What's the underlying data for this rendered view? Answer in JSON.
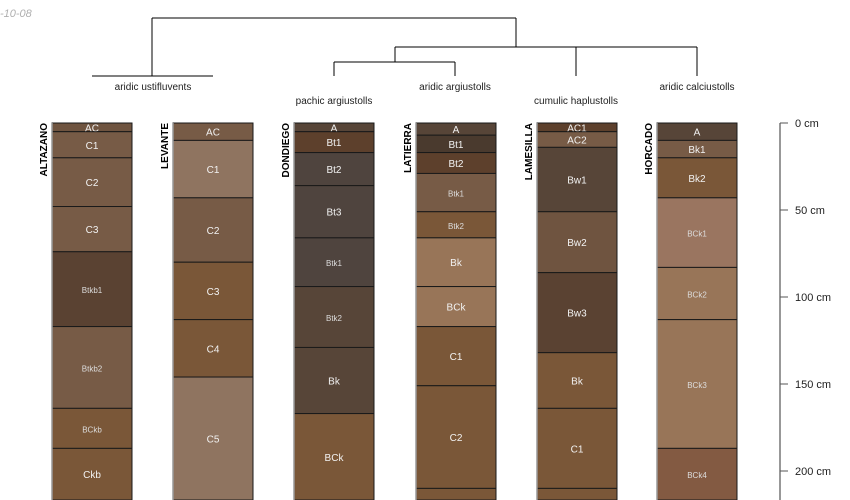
{
  "date_fragment": "-10-08",
  "depth_axis": {
    "unit": "cm",
    "ticks": [
      0,
      50,
      100,
      150,
      200
    ],
    "tick_labels": [
      "0 cm",
      "50 cm",
      "100 cm",
      "150 cm",
      "200 cm"
    ]
  },
  "taxa_labels": [
    "aridic ustifluvents",
    "pachic argiustolls",
    "aridic argiustolls",
    "cumulic haplustolls",
    "aridic calciustolls"
  ],
  "profiles": [
    {
      "name": "ALTAZANO",
      "horizons": [
        {
          "label": "AC",
          "top": 0,
          "bottom": 5,
          "color": "#6f5440"
        },
        {
          "label": "C1",
          "top": 5,
          "bottom": 20,
          "color": "#775b46"
        },
        {
          "label": "C2",
          "top": 20,
          "bottom": 48,
          "color": "#775b46"
        },
        {
          "label": "C3",
          "top": 48,
          "bottom": 74,
          "color": "#775b46"
        },
        {
          "label": "Btkb1",
          "top": 74,
          "bottom": 117,
          "color": "#5a4232"
        },
        {
          "label": "Btkb2",
          "top": 117,
          "bottom": 164,
          "color": "#775b46"
        },
        {
          "label": "BCkb",
          "top": 164,
          "bottom": 187,
          "color": "#7a5738"
        },
        {
          "label": "Ckb",
          "top": 187,
          "bottom": 220,
          "color": "#7a5738"
        }
      ]
    },
    {
      "name": "LEVANTE",
      "horizons": [
        {
          "label": "AC",
          "top": 0,
          "bottom": 10,
          "color": "#775b46"
        },
        {
          "label": "C1",
          "top": 10,
          "bottom": 43,
          "color": "#8f7460"
        },
        {
          "label": "C2",
          "top": 43,
          "bottom": 80,
          "color": "#775b46"
        },
        {
          "label": "C3",
          "top": 80,
          "bottom": 113,
          "color": "#7a5738"
        },
        {
          "label": "C4",
          "top": 113,
          "bottom": 146,
          "color": "#7a5738"
        },
        {
          "label": "C5",
          "top": 146,
          "bottom": 220,
          "color": "#8f7460"
        }
      ]
    },
    {
      "name": "DONDIEGO",
      "horizons": [
        {
          "label": "A",
          "top": 0,
          "bottom": 5,
          "color": "#574538"
        },
        {
          "label": "Bt1",
          "top": 5,
          "bottom": 17,
          "color": "#5d402c"
        },
        {
          "label": "Bt2",
          "top": 17,
          "bottom": 36,
          "color": "#4f443e"
        },
        {
          "label": "Bt3",
          "top": 36,
          "bottom": 66,
          "color": "#4f443e"
        },
        {
          "label": "Btk1",
          "top": 66,
          "bottom": 94,
          "color": "#4f443e"
        },
        {
          "label": "Btk2",
          "top": 94,
          "bottom": 129,
          "color": "#574538"
        },
        {
          "label": "Bk",
          "top": 129,
          "bottom": 167,
          "color": "#574538"
        },
        {
          "label": "BCk",
          "top": 167,
          "bottom": 220,
          "color": "#7a5738"
        }
      ]
    },
    {
      "name": "LATIERRA",
      "horizons": [
        {
          "label": "A",
          "top": 0,
          "bottom": 7,
          "color": "#574538"
        },
        {
          "label": "Bt1",
          "top": 7,
          "bottom": 17,
          "color": "#4a3a2e"
        },
        {
          "label": "Bt2",
          "top": 17,
          "bottom": 29,
          "color": "#5d402c"
        },
        {
          "label": "Btk1",
          "top": 29,
          "bottom": 51,
          "color": "#775b46"
        },
        {
          "label": "Btk2",
          "top": 51,
          "bottom": 66,
          "color": "#7a5738"
        },
        {
          "label": "Bk",
          "top": 66,
          "bottom": 94,
          "color": "#987558"
        },
        {
          "label": "BCk",
          "top": 94,
          "bottom": 117,
          "color": "#987558"
        },
        {
          "label": "C1",
          "top": 117,
          "bottom": 151,
          "color": "#7a5738"
        },
        {
          "label": "C2",
          "top": 151,
          "bottom": 210,
          "color": "#7a5738"
        },
        {
          "label": "",
          "top": 210,
          "bottom": 220,
          "color": "#7a5738"
        }
      ]
    },
    {
      "name": "LAMESILLA",
      "horizons": [
        {
          "label": "AC1",
          "top": 0,
          "bottom": 5,
          "color": "#5d402c"
        },
        {
          "label": "AC2",
          "top": 5,
          "bottom": 14,
          "color": "#775b46"
        },
        {
          "label": "Bw1",
          "top": 14,
          "bottom": 51,
          "color": "#574538"
        },
        {
          "label": "Bw2",
          "top": 51,
          "bottom": 86,
          "color": "#6f5440"
        },
        {
          "label": "Bw3",
          "top": 86,
          "bottom": 132,
          "color": "#5a4232"
        },
        {
          "label": "Bk",
          "top": 132,
          "bottom": 164,
          "color": "#7a5738"
        },
        {
          "label": "C1",
          "top": 164,
          "bottom": 210,
          "color": "#7a5738"
        },
        {
          "label": "",
          "top": 210,
          "bottom": 220,
          "color": "#7a5738"
        }
      ]
    },
    {
      "name": "HORCADO",
      "horizons": [
        {
          "label": "A",
          "top": 0,
          "bottom": 10,
          "color": "#574538"
        },
        {
          "label": "Bk1",
          "top": 10,
          "bottom": 20,
          "color": "#775b46"
        },
        {
          "label": "Bk2",
          "top": 20,
          "bottom": 43,
          "color": "#7a5738"
        },
        {
          "label": "BCk1",
          "top": 43,
          "bottom": 83,
          "color": "#9a7560"
        },
        {
          "label": "BCk2",
          "top": 83,
          "bottom": 113,
          "color": "#987558"
        },
        {
          "label": "BCk3",
          "top": 113,
          "bottom": 187,
          "color": "#987558"
        },
        {
          "label": "BCk4",
          "top": 187,
          "bottom": 220,
          "color": "#835a42"
        }
      ]
    }
  ]
}
